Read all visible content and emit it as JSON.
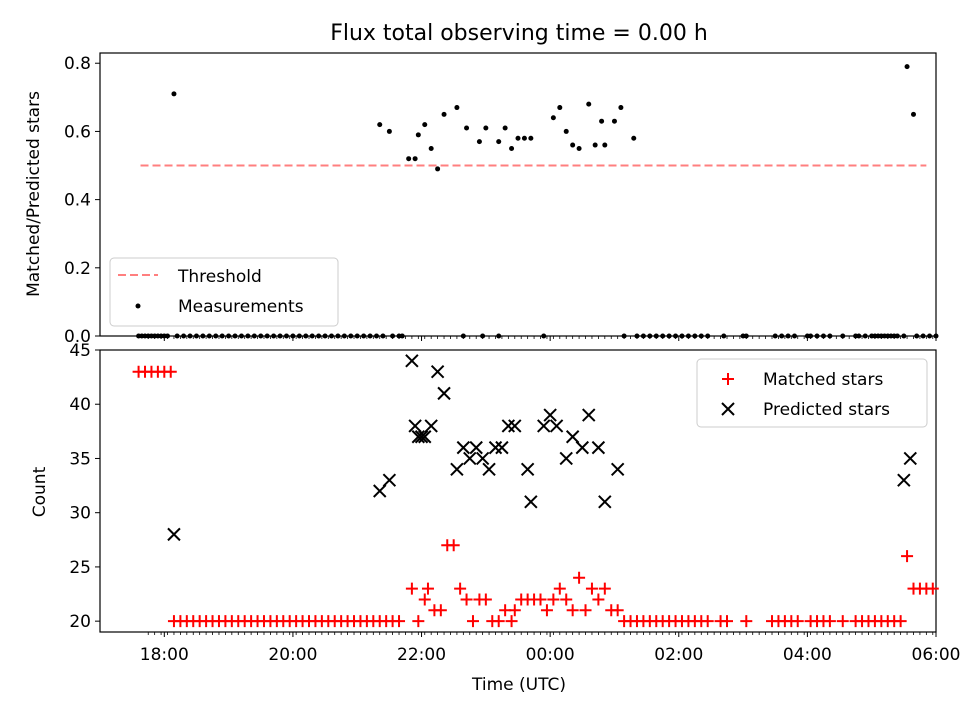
{
  "title": "Flux total observing time = 0.00 h",
  "colors": {
    "threshold": "#ff7f7f",
    "measurement": "#000000",
    "matched": "#ff0000",
    "predicted": "#000000"
  },
  "chart_data": [
    {
      "type": "scatter",
      "ylabel": "Matched/Predicted stars",
      "xlim": [
        -0.5,
        12.5
      ],
      "ylim": [
        0,
        0.83
      ],
      "yticks": [
        "0.0",
        "0.2",
        "0.4",
        "0.6",
        "0.8"
      ],
      "ytick_values": [
        0,
        0.2,
        0.4,
        0.6,
        0.8
      ],
      "legend": {
        "placement": "lower-left",
        "items": [
          "Threshold",
          "Measurements"
        ]
      },
      "threshold": {
        "name": "Threshold",
        "y": 0.5,
        "x": [
          0.13,
          12.35
        ]
      },
      "measurements": {
        "name": "Measurements",
        "points": [
          [
            0.65,
            0.71
          ],
          [
            3.85,
            0.62
          ],
          [
            4.0,
            0.6
          ],
          [
            4.3,
            0.52
          ],
          [
            4.4,
            0.52
          ],
          [
            4.45,
            0.59
          ],
          [
            4.55,
            0.62
          ],
          [
            4.65,
            0.55
          ],
          [
            4.75,
            0.49
          ],
          [
            4.85,
            0.65
          ],
          [
            5.05,
            0.67
          ],
          [
            5.2,
            0.61
          ],
          [
            5.4,
            0.57
          ],
          [
            5.5,
            0.61
          ],
          [
            5.7,
            0.57
          ],
          [
            5.8,
            0.61
          ],
          [
            5.9,
            0.55
          ],
          [
            6.0,
            0.58
          ],
          [
            6.1,
            0.58
          ],
          [
            6.2,
            0.58
          ],
          [
            6.55,
            0.64
          ],
          [
            6.65,
            0.67
          ],
          [
            6.75,
            0.6
          ],
          [
            6.85,
            0.56
          ],
          [
            6.95,
            0.55
          ],
          [
            7.1,
            0.68
          ],
          [
            7.2,
            0.56
          ],
          [
            7.3,
            0.63
          ],
          [
            7.35,
            0.56
          ],
          [
            7.5,
            0.63
          ],
          [
            7.6,
            0.67
          ],
          [
            7.8,
            0.58
          ],
          [
            12.05,
            0.79
          ],
          [
            12.15,
            0.65
          ]
        ],
        "zeros_x": [
          0.1,
          0.15,
          0.2,
          0.25,
          0.3,
          0.35,
          0.4,
          0.45,
          0.5,
          0.55,
          0.7,
          0.8,
          0.9,
          1.0,
          1.1,
          1.2,
          1.3,
          1.4,
          1.5,
          1.6,
          1.7,
          1.8,
          1.9,
          2.0,
          2.1,
          2.2,
          2.3,
          2.4,
          2.5,
          2.6,
          2.7,
          2.8,
          2.9,
          3.0,
          3.1,
          3.2,
          3.3,
          3.4,
          3.5,
          3.6,
          3.7,
          3.8,
          3.9,
          4.05,
          4.15,
          4.2,
          5.15,
          5.45,
          5.7,
          6.4,
          7.65,
          7.85,
          7.95,
          8.05,
          8.15,
          8.25,
          8.35,
          8.45,
          8.55,
          8.65,
          8.75,
          8.85,
          8.95,
          9.2,
          9.5,
          9.55,
          10.0,
          10.1,
          10.2,
          10.3,
          10.5,
          10.55,
          10.65,
          10.75,
          10.85,
          11.05,
          11.25,
          11.3,
          11.4,
          11.5,
          11.55,
          11.6,
          11.65,
          11.7,
          11.75,
          11.8,
          11.85,
          11.9,
          12.0,
          12.2,
          12.3,
          12.4,
          12.5
        ]
      }
    },
    {
      "type": "scatter",
      "xlabel": "Time (UTC)",
      "ylabel": "Count",
      "xlim": [
        -0.5,
        12.5
      ],
      "ylim": [
        19,
        45
      ],
      "yticks": [
        "20",
        "25",
        "30",
        "35",
        "40",
        "45"
      ],
      "ytick_values": [
        20,
        25,
        30,
        35,
        40,
        45
      ],
      "xticks": [
        "18:00",
        "20:00",
        "22:00",
        "00:00",
        "02:00",
        "04:00",
        "06:00"
      ],
      "xtick_values": [
        0.5,
        2.5,
        4.5,
        6.5,
        8.5,
        10.5,
        12.5
      ],
      "minor_xtick_values": [
        0.25,
        0.35,
        0.45,
        0.55,
        0.65,
        0.75,
        0.85,
        0.95,
        1.05,
        1.15,
        1.25,
        1.35,
        1.45,
        1.55,
        1.65,
        1.75,
        1.85,
        1.95,
        2.05,
        2.15,
        2.25,
        2.35,
        2.45,
        2.55,
        2.65,
        2.75,
        2.85,
        2.95,
        3.05,
        3.15,
        3.25,
        3.35,
        3.45,
        3.55,
        3.65,
        3.75,
        3.85,
        3.95,
        4.05,
        4.15,
        4.25,
        4.35,
        4.45,
        4.55,
        4.65,
        4.75,
        4.85,
        4.95,
        5.05,
        5.15,
        5.25,
        5.35,
        5.45,
        5.55,
        5.65,
        5.75,
        5.85,
        5.95,
        6.05,
        6.15,
        6.25,
        6.35,
        6.45,
        6.55,
        6.65,
        6.75,
        6.85,
        6.95,
        7.05,
        7.15,
        7.25,
        7.35,
        7.45,
        7.55,
        7.65,
        7.75,
        7.85,
        7.95,
        8.05,
        8.15,
        8.25,
        8.35,
        8.45,
        8.55,
        8.65,
        8.75,
        8.85,
        8.95,
        9.05,
        9.15,
        9.25,
        9.35,
        9.45,
        9.55,
        9.65,
        9.75,
        9.85,
        9.95,
        10.05,
        10.15,
        10.25,
        10.35,
        10.45,
        10.55,
        10.65,
        10.75,
        10.85,
        10.95,
        11.05,
        11.15,
        11.25,
        11.35,
        11.45,
        11.55,
        11.65,
        11.75,
        11.85,
        11.95,
        12.05,
        12.15,
        12.25,
        12.35,
        12.45
      ],
      "legend": {
        "placement": "top-right",
        "items": [
          "Matched stars",
          "Predicted stars"
        ]
      },
      "series": [
        {
          "name": "Matched stars",
          "marker": "plus",
          "points": [
            [
              0.1,
              43
            ],
            [
              0.2,
              43
            ],
            [
              0.3,
              43
            ],
            [
              0.4,
              43
            ],
            [
              0.5,
              43
            ],
            [
              0.6,
              43
            ],
            [
              0.65,
              20
            ],
            [
              0.75,
              20
            ],
            [
              0.85,
              20
            ],
            [
              0.95,
              20
            ],
            [
              1.05,
              20
            ],
            [
              1.15,
              20
            ],
            [
              1.25,
              20
            ],
            [
              1.35,
              20
            ],
            [
              1.45,
              20
            ],
            [
              1.55,
              20
            ],
            [
              1.65,
              20
            ],
            [
              1.75,
              20
            ],
            [
              1.85,
              20
            ],
            [
              1.95,
              20
            ],
            [
              2.05,
              20
            ],
            [
              2.15,
              20
            ],
            [
              2.25,
              20
            ],
            [
              2.35,
              20
            ],
            [
              2.45,
              20
            ],
            [
              2.55,
              20
            ],
            [
              2.65,
              20
            ],
            [
              2.75,
              20
            ],
            [
              2.85,
              20
            ],
            [
              2.95,
              20
            ],
            [
              3.05,
              20
            ],
            [
              3.15,
              20
            ],
            [
              3.25,
              20
            ],
            [
              3.35,
              20
            ],
            [
              3.45,
              20
            ],
            [
              3.55,
              20
            ],
            [
              3.65,
              20
            ],
            [
              3.75,
              20
            ],
            [
              3.85,
              20
            ],
            [
              3.95,
              20
            ],
            [
              4.05,
              20
            ],
            [
              4.15,
              20
            ],
            [
              4.35,
              23
            ],
            [
              4.45,
              20
            ],
            [
              4.55,
              22
            ],
            [
              4.6,
              23
            ],
            [
              4.7,
              21
            ],
            [
              4.8,
              21
            ],
            [
              4.9,
              27
            ],
            [
              5.0,
              27
            ],
            [
              5.1,
              23
            ],
            [
              5.2,
              22
            ],
            [
              5.3,
              20
            ],
            [
              5.4,
              22
            ],
            [
              5.5,
              22
            ],
            [
              5.6,
              20
            ],
            [
              5.7,
              20
            ],
            [
              5.8,
              21
            ],
            [
              5.9,
              20
            ],
            [
              5.95,
              21
            ],
            [
              6.05,
              22
            ],
            [
              6.15,
              22
            ],
            [
              6.25,
              22
            ],
            [
              6.35,
              22
            ],
            [
              6.45,
              21
            ],
            [
              6.55,
              22
            ],
            [
              6.65,
              23
            ],
            [
              6.75,
              22
            ],
            [
              6.85,
              21
            ],
            [
              6.95,
              24
            ],
            [
              7.05,
              21
            ],
            [
              7.15,
              23
            ],
            [
              7.25,
              22
            ],
            [
              7.35,
              23
            ],
            [
              7.45,
              21
            ],
            [
              7.55,
              21
            ],
            [
              7.65,
              20
            ],
            [
              7.75,
              20
            ],
            [
              7.85,
              20
            ],
            [
              7.95,
              20
            ],
            [
              8.05,
              20
            ],
            [
              8.15,
              20
            ],
            [
              8.25,
              20
            ],
            [
              8.35,
              20
            ],
            [
              8.45,
              20
            ],
            [
              8.55,
              20
            ],
            [
              8.65,
              20
            ],
            [
              8.75,
              20
            ],
            [
              8.85,
              20
            ],
            [
              8.95,
              20
            ],
            [
              9.15,
              20
            ],
            [
              9.25,
              20
            ],
            [
              9.55,
              20
            ],
            [
              9.95,
              20
            ],
            [
              10.05,
              20
            ],
            [
              10.15,
              20
            ],
            [
              10.25,
              20
            ],
            [
              10.35,
              20
            ],
            [
              10.55,
              20
            ],
            [
              10.65,
              20
            ],
            [
              10.75,
              20
            ],
            [
              10.85,
              20
            ],
            [
              11.05,
              20
            ],
            [
              11.25,
              20
            ],
            [
              11.35,
              20
            ],
            [
              11.45,
              20
            ],
            [
              11.55,
              20
            ],
            [
              11.65,
              20
            ],
            [
              11.75,
              20
            ],
            [
              11.85,
              20
            ],
            [
              11.95,
              20
            ],
            [
              12.05,
              26
            ],
            [
              12.15,
              23
            ],
            [
              12.25,
              23
            ],
            [
              12.35,
              23
            ],
            [
              12.45,
              23
            ]
          ]
        },
        {
          "name": "Predicted stars",
          "marker": "x",
          "points": [
            [
              0.65,
              28
            ],
            [
              3.85,
              32
            ],
            [
              4.0,
              33
            ],
            [
              4.35,
              44
            ],
            [
              4.4,
              38
            ],
            [
              4.45,
              37
            ],
            [
              4.5,
              37
            ],
            [
              4.55,
              37
            ],
            [
              4.65,
              38
            ],
            [
              4.75,
              43
            ],
            [
              4.85,
              41
            ],
            [
              5.05,
              34
            ],
            [
              5.15,
              36
            ],
            [
              5.25,
              35
            ],
            [
              5.35,
              36
            ],
            [
              5.45,
              35
            ],
            [
              5.55,
              34
            ],
            [
              5.65,
              36
            ],
            [
              5.75,
              36
            ],
            [
              5.85,
              38
            ],
            [
              5.95,
              38
            ],
            [
              6.15,
              34
            ],
            [
              6.2,
              31
            ],
            [
              6.4,
              38
            ],
            [
              6.5,
              39
            ],
            [
              6.6,
              38
            ],
            [
              6.75,
              35
            ],
            [
              6.85,
              37
            ],
            [
              7.0,
              36
            ],
            [
              7.1,
              39
            ],
            [
              7.25,
              36
            ],
            [
              7.35,
              31
            ],
            [
              7.55,
              34
            ],
            [
              12.0,
              33
            ],
            [
              12.1,
              35
            ]
          ]
        }
      ]
    }
  ]
}
